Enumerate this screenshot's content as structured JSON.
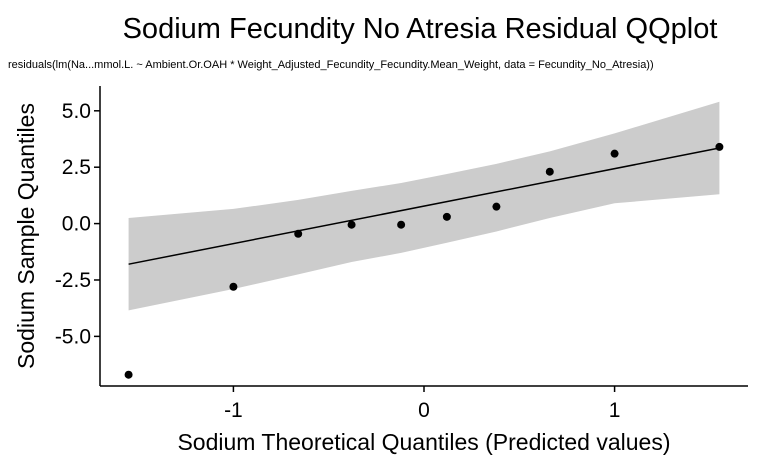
{
  "chart_data": {
    "type": "scatter",
    "title": "Sodium Fecundity No Atresia Residual QQplot",
    "subtitle": "residuals(lm(Na...mmol.L. ~ Ambient.Or.OAH * Weight_Adjusted_Fecundity_Fecundity.Mean_Weight, data = Fecundity_No_Atresia))",
    "xlabel": "Sodium Theoretical Quantiles (Predicted values)",
    "ylabel": "Sodium Sample Quantiles",
    "xlim": [
      -1.7,
      1.7
    ],
    "ylim": [
      -7.2,
      6.1
    ],
    "x_ticks": [
      -1,
      0,
      1
    ],
    "x_tick_labels": [
      "-1",
      "0",
      "1"
    ],
    "y_ticks": [
      -5.0,
      -2.5,
      0.0,
      2.5,
      5.0
    ],
    "y_tick_labels": [
      "-5.0",
      "-2.5",
      "0.0",
      "2.5",
      "5.0"
    ],
    "grid": false,
    "points": {
      "x": [
        -1.55,
        -1.0,
        -0.66,
        -0.38,
        -0.12,
        0.12,
        0.38,
        0.66,
        1.0,
        1.55
      ],
      "y": [
        -6.7,
        -2.8,
        -0.45,
        -0.05,
        -0.05,
        0.3,
        0.75,
        2.3,
        3.1,
        3.4
      ]
    },
    "reference_line": {
      "x": [
        -1.55,
        1.55
      ],
      "y": [
        -1.8,
        3.35
      ]
    },
    "confidence_band": {
      "x": [
        -1.55,
        -1.0,
        -0.66,
        -0.38,
        -0.12,
        0.12,
        0.38,
        0.66,
        1.0,
        1.55
      ],
      "upper": [
        0.25,
        0.65,
        1.05,
        1.45,
        1.8,
        2.2,
        2.65,
        3.2,
        4.0,
        5.4
      ],
      "lower": [
        -3.85,
        -2.9,
        -2.25,
        -1.7,
        -1.3,
        -0.85,
        -0.35,
        0.25,
        0.9,
        1.3
      ]
    },
    "colors": {
      "points": "#000000",
      "line": "#000000",
      "band": "#cccccc",
      "axis": "#000000"
    }
  }
}
